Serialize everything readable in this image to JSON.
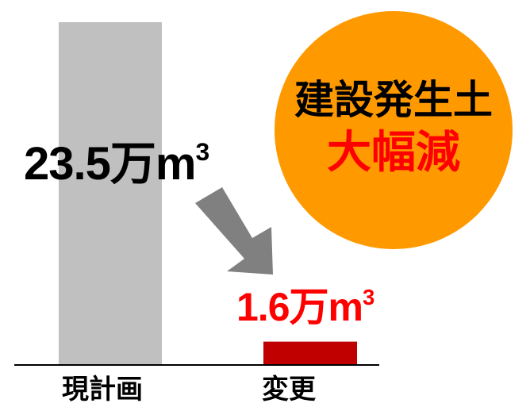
{
  "chart_data": {
    "type": "bar",
    "categories": [
      "現計画",
      "変更"
    ],
    "values": [
      23.5,
      1.6
    ],
    "value_labels": [
      "23.5万m",
      "1.6万m"
    ],
    "value_label_superscript": "3",
    "bar_colors": [
      "#c0c0c0",
      "#c00000"
    ],
    "ylim": [
      0,
      23.5
    ],
    "title": "",
    "xlabel": "",
    "ylabel": "",
    "grid": false,
    "legend": "none"
  },
  "badge": {
    "line1": "建設発生土",
    "line2": "大幅減",
    "circle_color": "#ff9900",
    "line2_color": "#ff0000"
  },
  "colors": {
    "baseline": "#000000",
    "arrow": "#808080",
    "after_label": "#ff0000"
  },
  "icons": {
    "arrow": "arrow-down-right-icon"
  }
}
